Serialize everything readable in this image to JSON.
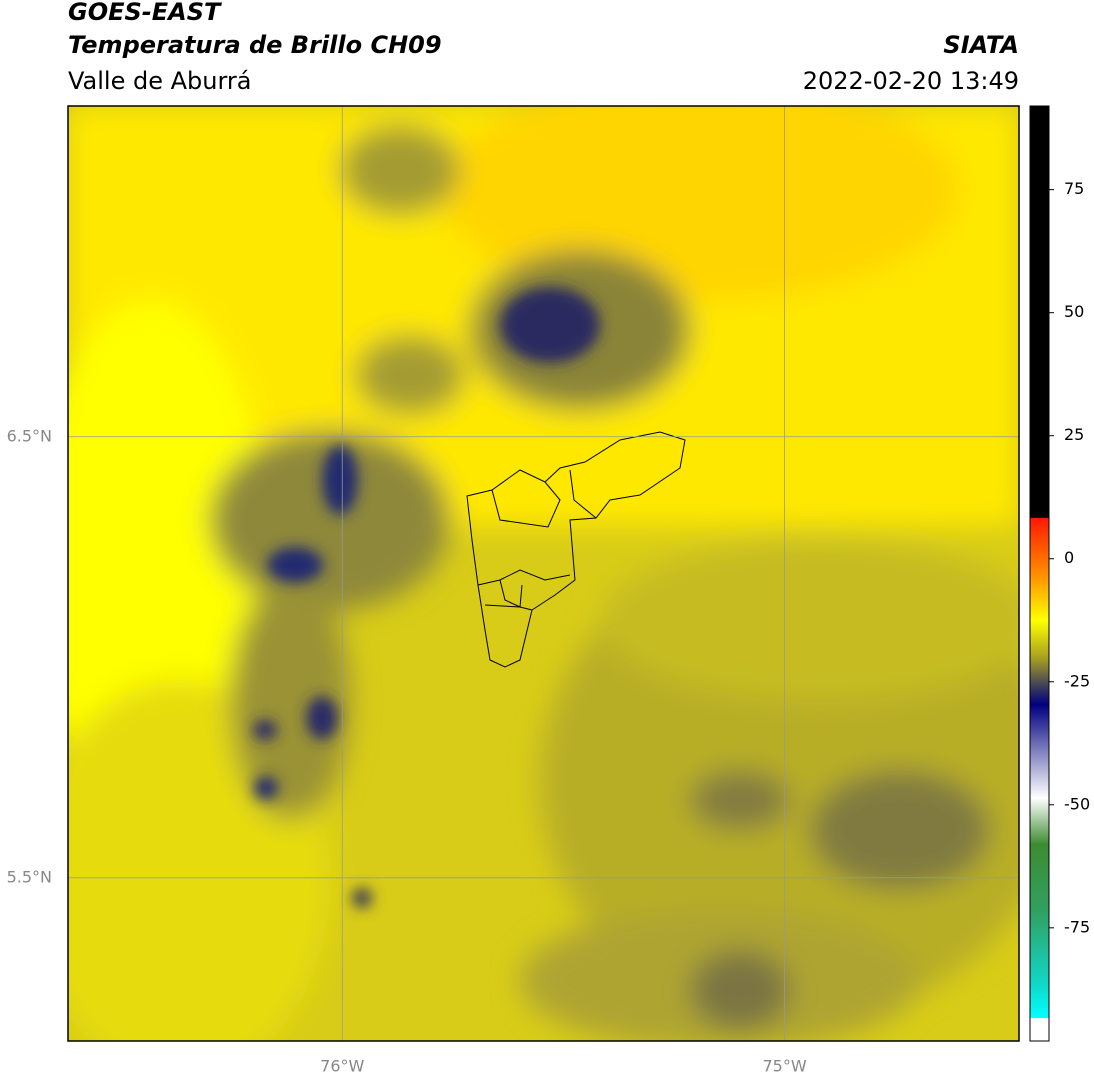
{
  "header": {
    "title": "GOES-EAST",
    "subtitle": "Temperatura de Brillo CH09",
    "region": "Valle de Aburrá",
    "source": "SIATA",
    "datetime": "2022-02-20 13:49"
  },
  "map": {
    "xlim": [
      -76.62,
      -74.47
    ],
    "ylim": [
      5.13,
      7.25
    ],
    "xticks": [
      {
        "value": -76,
        "label": "76°W"
      },
      {
        "value": -75,
        "label": "75°W"
      }
    ],
    "yticks": [
      {
        "value": 6.5,
        "label": "6.5°N"
      },
      {
        "value": 5.5,
        "label": "5.5°N"
      }
    ],
    "grid": true
  },
  "colorbar": {
    "lim": [
      -98,
      92
    ],
    "ticks": [
      75,
      50,
      25,
      0,
      -25,
      -50,
      -75
    ]
  }
}
